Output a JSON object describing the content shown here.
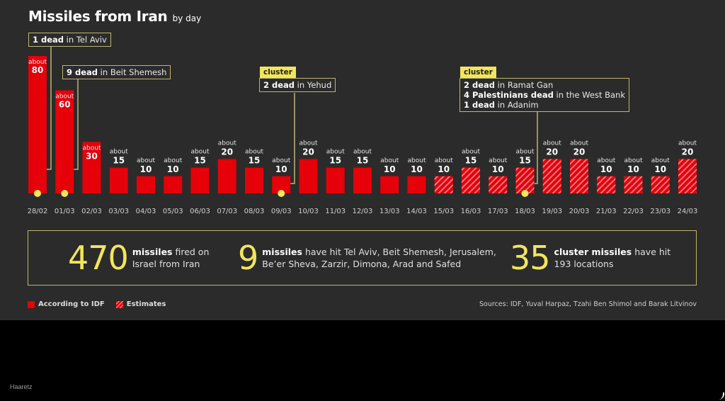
{
  "title": {
    "main": "Missiles from Iran",
    "sub": "by day"
  },
  "chart_data": {
    "type": "bar",
    "title": "Missiles from Iran by day",
    "xlabel": "",
    "ylabel": "",
    "ylim": [
      0,
      80
    ],
    "grid": false,
    "value_prefix": "about",
    "categories": [
      "28/02",
      "01/03",
      "02/03",
      "03/03",
      "04/03",
      "05/03",
      "06/03",
      "07/03",
      "08/03",
      "09/03",
      "10/03",
      "11/03",
      "12/03",
      "13/03",
      "14/03",
      "15/03",
      "16/03",
      "17/03",
      "18/03",
      "19/03",
      "20/03",
      "21/03",
      "22/03",
      "23/03",
      "24/03"
    ],
    "values": [
      80,
      60,
      30,
      15,
      10,
      10,
      15,
      20,
      15,
      10,
      20,
      15,
      15,
      10,
      10,
      10,
      15,
      10,
      15,
      20,
      20,
      10,
      10,
      10,
      20
    ],
    "source_type": [
      "idf",
      "idf",
      "idf",
      "idf",
      "idf",
      "idf",
      "idf",
      "idf",
      "idf",
      "idf",
      "idf",
      "idf",
      "idf",
      "idf",
      "idf",
      "estimate",
      "estimate",
      "estimate",
      "estimate",
      "estimate",
      "estimate",
      "estimate",
      "estimate",
      "estimate",
      "estimate"
    ],
    "legend": [
      {
        "key": "idf",
        "label": "According to IDF"
      },
      {
        "key": "estimate",
        "label": "Estimates"
      }
    ],
    "legend_position": "bottom-left",
    "colors": {
      "bar": "#e5000a",
      "hatch": "#f27a80",
      "annotation": "#f2e65a",
      "annotation_border": "#bfb66a"
    },
    "annotations": [
      {
        "category": "28/02",
        "tag": "",
        "lines": [
          {
            "bold": "1 dead",
            "rest": " in Tel Aviv"
          }
        ]
      },
      {
        "category": "01/03",
        "tag": "",
        "lines": [
          {
            "bold": "9 dead",
            "rest": " in Beit Shemesh"
          }
        ]
      },
      {
        "category": "09/03",
        "tag": "cluster",
        "lines": [
          {
            "bold": "2 dead",
            "rest": " in Yehud"
          }
        ]
      },
      {
        "category": "18/03",
        "tag": "cluster",
        "lines": [
          {
            "bold": "2 dead",
            "rest": " in Ramat Gan"
          },
          {
            "bold": "4 Palestinians dead",
            "rest": " in the West Bank"
          },
          {
            "bold": "1 dead",
            "rest": " in Adanim"
          }
        ]
      }
    ]
  },
  "stats": [
    {
      "number": "470",
      "bold": "missiles",
      "line1_rest": " fired on",
      "line2": "Israel from Iran"
    },
    {
      "number": "9",
      "bold": "missiles",
      "line1_rest": " have hit Tel Aviv, Beit Shemesh, Jerusalem,",
      "line2": "Be’er Sheva, Zarzir, Dimona, Arad and Safed"
    },
    {
      "number": "35",
      "bold": "cluster missiles",
      "line1_rest": " have hit",
      "line2": "193 locations"
    }
  ],
  "sources": "Sources: IDF, Yuval Harpaz, Tzahi Ben Shimol and Barak Litvinov",
  "brand": "Haaretz"
}
